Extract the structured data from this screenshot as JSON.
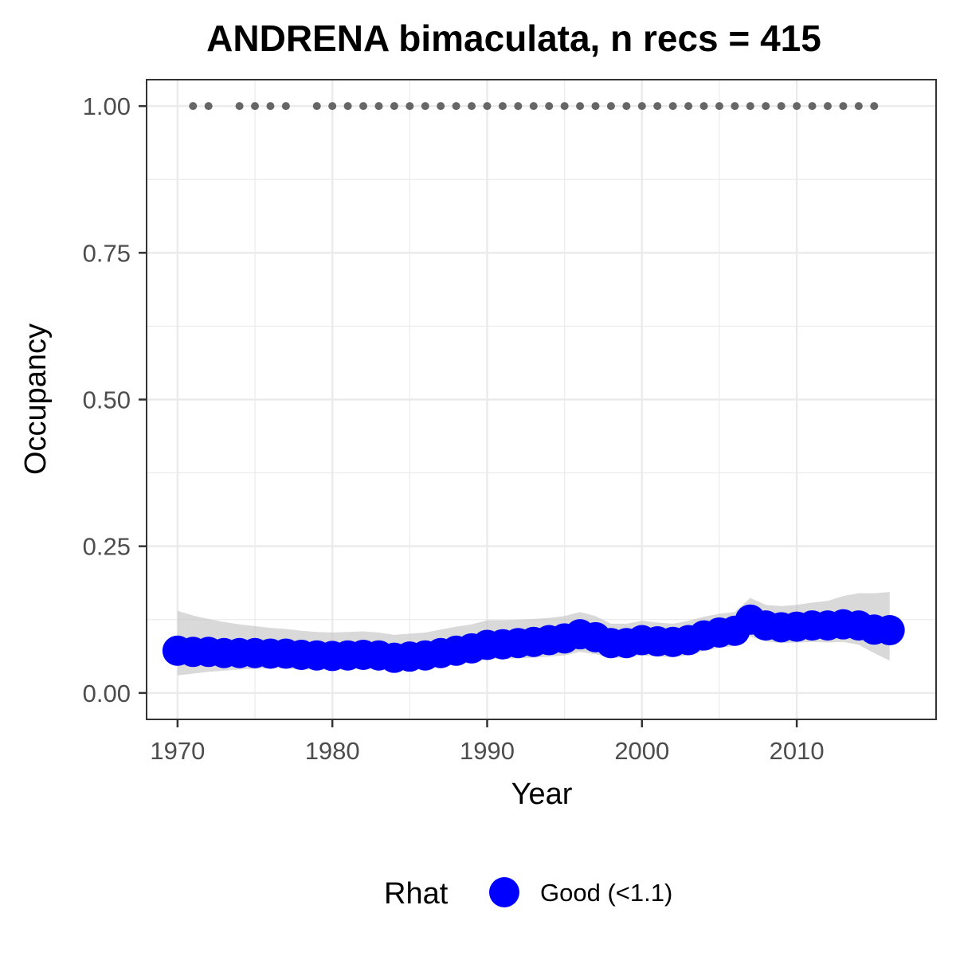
{
  "chart_data": {
    "type": "line",
    "title": "ANDRENA bimaculata, n recs = 415",
    "xlabel": "Year",
    "ylabel": "Occupancy",
    "xlim": [
      1968,
      2019
    ],
    "ylim": [
      -0.045,
      1.045
    ],
    "x_ticks": [
      1970,
      1980,
      1990,
      2000,
      2010
    ],
    "x_tick_labels": [
      "1970",
      "1980",
      "1990",
      "2000",
      "2010"
    ],
    "y_ticks": [
      0.0,
      0.25,
      0.5,
      0.75,
      1.0
    ],
    "y_tick_labels": [
      "0.00",
      "0.25",
      "0.50",
      "0.75",
      "1.00"
    ],
    "grid": true,
    "legend": {
      "title": "Rhat",
      "placement": "bottom",
      "entries": [
        {
          "label": "Good (<1.1)",
          "color": "#0000ff"
        }
      ]
    },
    "colors": {
      "series": "#0000ff",
      "ribbon": "#bfbfbf",
      "record_years": "#666666",
      "grid": "#ebebeb",
      "panel_border": "#333333"
    },
    "series": [
      {
        "x": [
          1970,
          1971,
          1972,
          1973,
          1974,
          1975,
          1976,
          1977,
          1978,
          1979,
          1980,
          1981,
          1982,
          1983,
          1984,
          1985,
          1986,
          1987,
          1988,
          1989,
          1990,
          1991,
          1992,
          1993,
          1994,
          1995,
          1996,
          1997,
          1998,
          1999,
          2000,
          2001,
          2002,
          2003,
          2004,
          2005,
          2006,
          2007,
          2008,
          2009,
          2010,
          2011,
          2012,
          2013,
          2014,
          2015,
          2016
        ],
        "values": [
          0.072,
          0.07,
          0.07,
          0.068,
          0.068,
          0.068,
          0.067,
          0.067,
          0.065,
          0.064,
          0.063,
          0.064,
          0.065,
          0.064,
          0.06,
          0.062,
          0.064,
          0.068,
          0.072,
          0.076,
          0.082,
          0.083,
          0.085,
          0.087,
          0.09,
          0.093,
          0.1,
          0.095,
          0.085,
          0.085,
          0.09,
          0.088,
          0.087,
          0.09,
          0.098,
          0.103,
          0.106,
          0.125,
          0.115,
          0.112,
          0.113,
          0.115,
          0.115,
          0.117,
          0.115,
          0.108,
          0.107
        ],
        "lower": [
          0.03,
          0.033,
          0.036,
          0.038,
          0.04,
          0.041,
          0.042,
          0.042,
          0.04,
          0.04,
          0.039,
          0.04,
          0.042,
          0.041,
          0.038,
          0.04,
          0.043,
          0.046,
          0.05,
          0.053,
          0.058,
          0.058,
          0.059,
          0.06,
          0.062,
          0.064,
          0.07,
          0.066,
          0.06,
          0.06,
          0.064,
          0.062,
          0.061,
          0.064,
          0.072,
          0.077,
          0.08,
          0.096,
          0.088,
          0.085,
          0.086,
          0.087,
          0.086,
          0.087,
          0.082,
          0.068,
          0.055
        ],
        "upper": [
          0.14,
          0.132,
          0.126,
          0.121,
          0.117,
          0.114,
          0.111,
          0.109,
          0.106,
          0.104,
          0.103,
          0.104,
          0.105,
          0.103,
          0.099,
          0.101,
          0.103,
          0.108,
          0.113,
          0.117,
          0.124,
          0.124,
          0.125,
          0.126,
          0.128,
          0.131,
          0.138,
          0.131,
          0.118,
          0.118,
          0.123,
          0.12,
          0.118,
          0.123,
          0.13,
          0.135,
          0.138,
          0.162,
          0.15,
          0.148,
          0.15,
          0.154,
          0.157,
          0.165,
          0.17,
          0.17,
          0.172
        ]
      }
    ],
    "record_years": {
      "y": 1.0,
      "x": [
        1971,
        1972,
        1974,
        1975,
        1976,
        1977,
        1979,
        1980,
        1981,
        1982,
        1983,
        1984,
        1985,
        1986,
        1987,
        1988,
        1989,
        1990,
        1991,
        1992,
        1993,
        1994,
        1995,
        1996,
        1997,
        1998,
        1999,
        2000,
        2001,
        2002,
        2003,
        2004,
        2005,
        2006,
        2007,
        2008,
        2009,
        2010,
        2011,
        2012,
        2013,
        2014,
        2015
      ]
    }
  }
}
